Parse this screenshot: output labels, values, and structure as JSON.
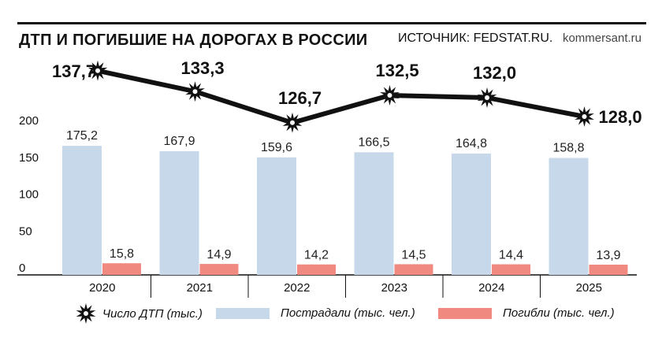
{
  "header": {
    "title": "ДТП И ПОГИБШИЕ НА ДОРОГАХ В РОССИИ",
    "source": "ИСТОЧНИК: FEDSTAT.RU.",
    "brand": "kommersant.ru"
  },
  "legend": {
    "accidents": "Число ДТП (тыс.)",
    "injured": "Пострадали (тыс. чел.)",
    "killed": "Погибли (тыс. чел.)"
  },
  "colors": {
    "injured": "#c6d8ea",
    "killed": "#f08a80",
    "line": "#111111"
  },
  "chart_data": {
    "type": "bar",
    "categories": [
      "2020",
      "2021",
      "2022",
      "2023",
      "2024",
      "2025"
    ],
    "y_ticks": [
      "0",
      "50",
      "100",
      "150",
      "200"
    ],
    "ylim": [
      0,
      200
    ],
    "series": [
      {
        "name": "Пострадали (тыс. чел.)",
        "values": [
          175.2,
          167.9,
          159.6,
          166.5,
          164.8,
          158.8
        ],
        "labels": [
          "175,2",
          "167,9",
          "159,6",
          "166,5",
          "164,8",
          "158,8"
        ]
      },
      {
        "name": "Погибли (тыс. чел.)",
        "values": [
          15.8,
          14.9,
          14.2,
          14.5,
          14.4,
          13.9
        ],
        "labels": [
          "15,8",
          "14,9",
          "14,2",
          "14,5",
          "14,4",
          "13,9"
        ]
      }
    ],
    "line_series": {
      "name": "Число ДТП (тыс.)",
      "type": "line",
      "values": [
        137.7,
        133.3,
        126.7,
        132.5,
        132.0,
        128.0
      ],
      "labels": [
        "137,7",
        "133,3",
        "126,7",
        "132,5",
        "132,0",
        "128,0"
      ]
    }
  }
}
